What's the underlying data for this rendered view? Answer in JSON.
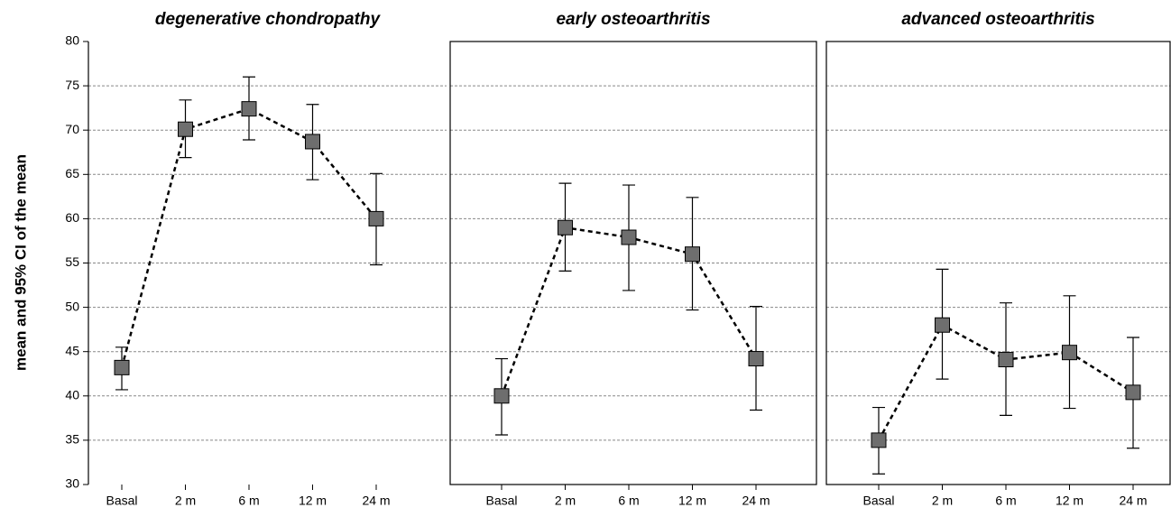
{
  "chart_data": [
    {
      "type": "line",
      "title": "degenerative chondropathy",
      "ylabel": "mean and 95% CI  of the mean",
      "categories": [
        "Basal",
        "2 m",
        "6 m",
        "12 m",
        "24 m"
      ],
      "values": [
        43.2,
        70.1,
        72.4,
        68.7,
        60.0
      ],
      "ci_lower": [
        40.7,
        66.9,
        68.9,
        64.4,
        54.8
      ],
      "ci_upper": [
        45.5,
        73.4,
        76.0,
        72.9,
        65.1
      ],
      "ylim": [
        30,
        80
      ],
      "yticks": [
        30,
        35,
        40,
        45,
        50,
        55,
        60,
        65,
        70,
        75,
        80
      ],
      "grid": true,
      "frame": false,
      "color": "#6e6e6e"
    },
    {
      "type": "line",
      "title": "early osteoarthritis",
      "categories": [
        "Basal",
        "2 m",
        "6 m",
        "12 m",
        "24 m"
      ],
      "values": [
        40.0,
        59.0,
        57.9,
        56.0,
        44.2
      ],
      "ci_lower": [
        35.6,
        54.1,
        51.9,
        49.7,
        38.4
      ],
      "ci_upper": [
        44.2,
        64.0,
        63.8,
        62.4,
        50.1
      ],
      "ylim": [
        30,
        80
      ],
      "yticks": [
        30,
        35,
        40,
        45,
        50,
        55,
        60,
        65,
        70,
        75,
        80
      ],
      "grid": true,
      "frame": true,
      "color": "#6e6e6e"
    },
    {
      "type": "line",
      "title": "advanced osteoarthritis",
      "categories": [
        "Basal",
        "2 m",
        "6 m",
        "12 m",
        "24 m"
      ],
      "values": [
        35.0,
        48.0,
        44.1,
        44.9,
        40.4
      ],
      "ci_lower": [
        31.2,
        41.9,
        37.8,
        38.6,
        34.1
      ],
      "ci_upper": [
        38.7,
        54.3,
        50.5,
        51.3,
        46.6
      ],
      "ylim": [
        30,
        80
      ],
      "yticks": [
        30,
        35,
        40,
        45,
        50,
        55,
        60,
        65,
        70,
        75,
        80
      ],
      "grid": true,
      "frame": true,
      "color": "#6e6e6e"
    }
  ]
}
